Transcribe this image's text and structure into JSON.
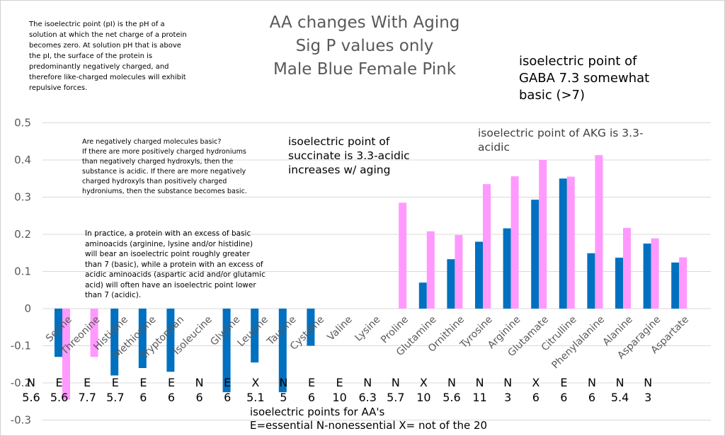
{
  "title": {
    "line1": "AA changes With Aging",
    "line2": "Sig P values only",
    "line3": "Male Blue Female Pink"
  },
  "notes": {
    "pi_definition": "The isoelectric point (pI) is the pH of a\nsolution at which the net charge of a protein\nbecomes zero. At solution pH that is above\nthe pI, the surface of the protein is\npredominantly negatively charged, and\ntherefore like-charged molecules will exhibit\nrepulsive forces.",
    "gaba": "isoelectric point of\nGABA 7.3 somewhat\nbasic (>7)",
    "basic_question": "Are negatively charged molecules basic?\nIf there are more positively charged hydroniums\nthan negatively charged hydroxyls, then the\nsubstance is acidic. If there are more negatively\ncharged hydroxyls than positively charged\nhydroniums, then the substance becomes basic.",
    "succinate": "isoelectric point of\nsuccinate is 3.3-acidic\nincreases w/ aging",
    "akg": "isoelectric point of AKG is 3.3-\nacidic",
    "practice": "In practice, a protein with an excess of basic\naminoacids (arginine, lysine and/or histidine)\nwill bear an isoelectric point roughly greater\nthan 7 (basic), while a protein with an excess of\nacidic aminoacids (aspartic acid and/or glutamic\nacid) will often have an isoelectric point lower\nthan 7 (acidic).",
    "legend_bottom": "isoelectric points for AA's\nE=essential N-nonessential X= not of the 20"
  },
  "colors": {
    "male": "#0070c0",
    "female": "#ff99ff",
    "grid": "#d9d9d9",
    "tick_text": "#595959"
  },
  "chart_data": {
    "type": "bar",
    "ylim": [
      -0.3,
      0.5
    ],
    "yticks": [
      "0.5",
      "0.4",
      "0.3",
      "0.2",
      "0.1",
      "0",
      "-0.1",
      "-0.2",
      "-0.3"
    ],
    "grid": true,
    "categories": [
      "Serine",
      "Threonine",
      "Histidine",
      "Methionine",
      "Tryptophan",
      "Isoleucine",
      "Glycine",
      "Leucine",
      "Taurine",
      "Cysteine",
      "Valine",
      "Lysine",
      "Proline",
      "Glutamine",
      "Ornithine",
      "Tyrosine",
      "Arginine",
      "Glutamate",
      "Citrulline",
      "Phenylalanine",
      "Alanine",
      "Asparagine",
      "Aspartate"
    ],
    "series": [
      {
        "name": "Male",
        "values": [
          -0.13,
          null,
          -0.18,
          -0.16,
          -0.17,
          null,
          -0.225,
          -0.145,
          -0.225,
          -0.1,
          null,
          null,
          null,
          0.07,
          0.133,
          0.18,
          0.216,
          0.293,
          0.35,
          0.149,
          0.137,
          0.175,
          0.124
        ]
      },
      {
        "name": "Female",
        "values": [
          -0.245,
          -0.13,
          null,
          null,
          null,
          null,
          null,
          null,
          null,
          null,
          null,
          null,
          0.285,
          0.208,
          0.198,
          0.335,
          0.356,
          0.4,
          0.355,
          0.413,
          0.217,
          0.189,
          0.138
        ]
      }
    ],
    "annotations_row1": [
      "N",
      "E",
      "E",
      "E",
      "E",
      "E",
      "N",
      "E",
      "X",
      "N",
      "E",
      "E",
      "N",
      "N",
      "X",
      "N",
      "N",
      "N",
      "X",
      "E",
      "N",
      "N",
      "N"
    ],
    "annotations_row2": [
      "5.6",
      "5.6",
      "7.7",
      "5.7",
      "6",
      "6",
      "6",
      "6",
      "5.1",
      "5",
      "6",
      "10",
      "6.3",
      "5.7",
      "10",
      "5.6",
      "11",
      "3",
      "6",
      "6",
      "6",
      "5.4",
      "3"
    ]
  }
}
